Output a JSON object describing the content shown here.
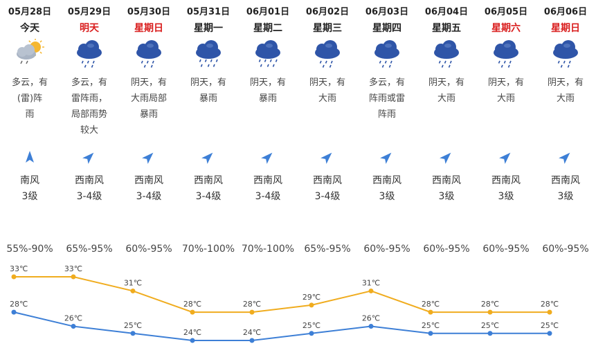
{
  "days": [
    {
      "date": "05月28日",
      "day": "今天",
      "weekend": false,
      "icon": "partly-cloudy-thunder-icon",
      "desc": [
        "多云，有",
        "(雷)阵",
        "雨"
      ],
      "wind_dir": "南风",
      "wind_level": "3级",
      "arrow": "arrow-north-icon",
      "humidity": "55%-90%",
      "high": 33,
      "low": 28
    },
    {
      "date": "05月29日",
      "day": "明天",
      "weekend": true,
      "icon": "rain-cloud-icon",
      "desc": [
        "多云，有",
        "雷阵雨，",
        "局部雨势",
        "较大"
      ],
      "wind_dir": "西南风",
      "wind_level": "3-4级",
      "arrow": "arrow-northeast-icon",
      "humidity": "65%-95%",
      "high": 33,
      "low": 26
    },
    {
      "date": "05月30日",
      "day": "星期日",
      "weekend": true,
      "icon": "rain-cloud-icon",
      "desc": [
        "阴天，有",
        "大雨局部",
        "暴雨"
      ],
      "wind_dir": "西南风",
      "wind_level": "3-4级",
      "arrow": "arrow-northeast-icon",
      "humidity": "60%-95%",
      "high": 31,
      "low": 25
    },
    {
      "date": "05月31日",
      "day": "星期一",
      "weekend": false,
      "icon": "heavy-rain-cloud-icon",
      "desc": [
        "阴天，有",
        "暴雨"
      ],
      "wind_dir": "西南风",
      "wind_level": "3-4级",
      "arrow": "arrow-northeast-icon",
      "humidity": "70%-100%",
      "high": 28,
      "low": 24
    },
    {
      "date": "06月01日",
      "day": "星期二",
      "weekend": false,
      "icon": "heavy-rain-cloud-icon",
      "desc": [
        "阴天，有",
        "暴雨"
      ],
      "wind_dir": "西南风",
      "wind_level": "3-4级",
      "arrow": "arrow-northeast-icon",
      "humidity": "70%-100%",
      "high": 28,
      "low": 24
    },
    {
      "date": "06月02日",
      "day": "星期三",
      "weekend": false,
      "icon": "rain-cloud-icon",
      "desc": [
        "阴天，有",
        "大雨"
      ],
      "wind_dir": "西南风",
      "wind_level": "3-4级",
      "arrow": "arrow-northeast-icon",
      "humidity": "65%-95%",
      "high": 29,
      "low": 25
    },
    {
      "date": "06月03日",
      "day": "星期四",
      "weekend": false,
      "icon": "rain-cloud-icon",
      "desc": [
        "多云，有",
        "阵雨或雷",
        "阵雨"
      ],
      "wind_dir": "西南风",
      "wind_level": "3级",
      "arrow": "arrow-northeast-icon",
      "humidity": "60%-95%",
      "high": 31,
      "low": 26
    },
    {
      "date": "06月04日",
      "day": "星期五",
      "weekend": false,
      "icon": "rain-cloud-icon",
      "desc": [
        "阴天，有",
        "大雨"
      ],
      "wind_dir": "西南风",
      "wind_level": "3级",
      "arrow": "arrow-northeast-icon",
      "humidity": "60%-95%",
      "high": 28,
      "low": 25
    },
    {
      "date": "06月05日",
      "day": "星期六",
      "weekend": true,
      "icon": "rain-cloud-icon",
      "desc": [
        "阴天，有",
        "大雨"
      ],
      "wind_dir": "西南风",
      "wind_level": "3级",
      "arrow": "arrow-northeast-icon",
      "humidity": "60%-95%",
      "high": 28,
      "low": 25
    },
    {
      "date": "06月06日",
      "day": "星期日",
      "weekend": true,
      "icon": "rain-cloud-icon",
      "desc": [
        "阴天，有",
        "大雨"
      ],
      "wind_dir": "西南风",
      "wind_level": "3级",
      "arrow": "arrow-northeast-icon",
      "humidity": "60%-95%",
      "high": 28,
      "low": 25
    }
  ],
  "temp_unit": "℃",
  "colors": {
    "high_line": "#f0ac1e",
    "low_line": "#3d7fd6",
    "weekend_text": "#d91d1d",
    "icon_cloud": "#2f55a8",
    "icon_sun": "#f5b731",
    "arrow": "#3d7fd6"
  },
  "chart_data": {
    "type": "line",
    "categories": [
      "05月28日",
      "05月29日",
      "05月30日",
      "05月31日",
      "06月01日",
      "06月02日",
      "06月03日",
      "06月04日",
      "06月05日",
      "06月06日"
    ],
    "series": [
      {
        "values": [
          33,
          33,
          31,
          28,
          28,
          29,
          31,
          28,
          28,
          28
        ]
      },
      {
        "values": [
          28,
          26,
          25,
          24,
          24,
          25,
          26,
          25,
          25,
          25
        ]
      }
    ],
    "ylim": [
      24,
      33
    ],
    "grid": false,
    "data_labels": true
  }
}
